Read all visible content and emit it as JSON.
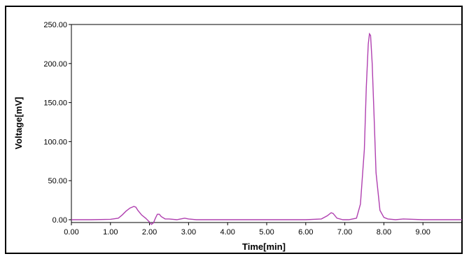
{
  "chart_data": {
    "type": "line",
    "title": "",
    "xlabel": "Time[min]",
    "ylabel": "Voltage[mV]",
    "xlim": [
      0,
      10
    ],
    "ylim": [
      0,
      250
    ],
    "x_ticks": [
      "0.00",
      "1.00",
      "2.00",
      "3.00",
      "4.00",
      "5.00",
      "6.00",
      "7.00",
      "8.00",
      "9.00"
    ],
    "x_tick_values": [
      0,
      1,
      2,
      3,
      4,
      5,
      6,
      7,
      8,
      9
    ],
    "y_ticks": [
      "0.00",
      "50.00",
      "100.00",
      "150.00",
      "200.00",
      "250.00"
    ],
    "y_tick_values": [
      0,
      50,
      100,
      150,
      200,
      250
    ],
    "grid": false,
    "legend": "none",
    "line_color": "#b040b0",
    "series": [
      {
        "x": [
          0.0,
          0.5,
          1.0,
          1.2,
          1.3,
          1.4,
          1.5,
          1.6,
          1.65,
          1.7,
          1.8,
          1.9,
          2.0,
          2.05,
          2.1,
          2.15,
          2.2,
          2.25,
          2.3,
          2.4,
          2.5,
          2.7,
          2.9,
          3.0,
          3.2,
          3.5,
          4.0,
          4.5,
          5.0,
          5.5,
          6.0,
          6.4,
          6.55,
          6.65,
          6.7,
          6.8,
          6.95,
          7.1,
          7.3,
          7.4,
          7.5,
          7.55,
          7.6,
          7.63,
          7.66,
          7.7,
          7.75,
          7.8,
          7.9,
          8.0,
          8.1,
          8.3,
          8.5,
          9.0,
          10.0
        ],
        "y": [
          0,
          0,
          0.5,
          2,
          6,
          11,
          15,
          17,
          16,
          12,
          6,
          2,
          -3,
          -6,
          -4,
          2,
          7,
          7,
          4,
          1,
          1,
          0,
          2,
          1,
          0,
          0,
          0,
          0,
          0,
          0,
          0,
          1,
          5,
          9,
          8,
          2,
          0,
          0,
          2,
          20,
          90,
          170,
          225,
          238,
          236,
          200,
          130,
          60,
          12,
          3,
          1,
          0,
          1,
          0,
          0
        ]
      }
    ]
  }
}
